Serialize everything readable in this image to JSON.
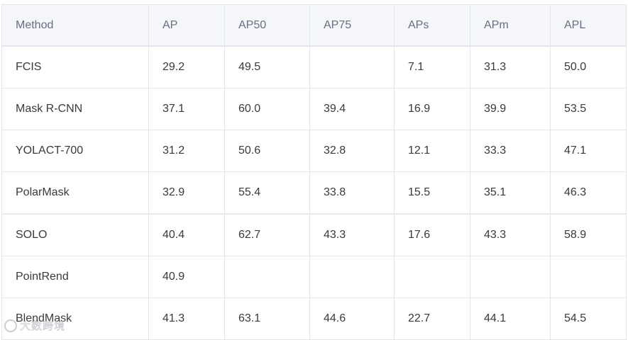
{
  "table": {
    "headers": [
      "Method",
      "AP",
      "AP50",
      "AP75",
      "APs",
      "APm",
      "APL"
    ],
    "rows": [
      [
        "FCIS",
        "29.2",
        "49.5",
        "",
        "7.1",
        "31.3",
        "50.0"
      ],
      [
        "Mask R-CNN",
        "37.1",
        "60.0",
        "39.4",
        "16.9",
        "39.9",
        "53.5"
      ],
      [
        "YOLACT-700",
        "31.2",
        "50.6",
        "32.8",
        "12.1",
        "33.3",
        "47.1"
      ],
      [
        "PolarMask",
        "32.9",
        "55.4",
        "33.8",
        "15.5",
        "35.1",
        "46.3"
      ],
      [
        "SOLO",
        "40.4",
        "62.7",
        "43.3",
        "17.6",
        "43.3",
        "58.9"
      ],
      [
        "PointRend",
        "40.9",
        "",
        "",
        "",
        "",
        ""
      ],
      [
        "BlendMask",
        "41.3",
        "63.1",
        "44.6",
        "22.7",
        "44.1",
        "54.5"
      ]
    ]
  },
  "watermark": {
    "text": "大数跨境",
    "icon": "watermark-logo-icon"
  },
  "colors": {
    "header_bg": "#f4f6f9",
    "header_text": "#667080",
    "border": "#e3e6ea",
    "cell_text": "#3a3a3a"
  }
}
